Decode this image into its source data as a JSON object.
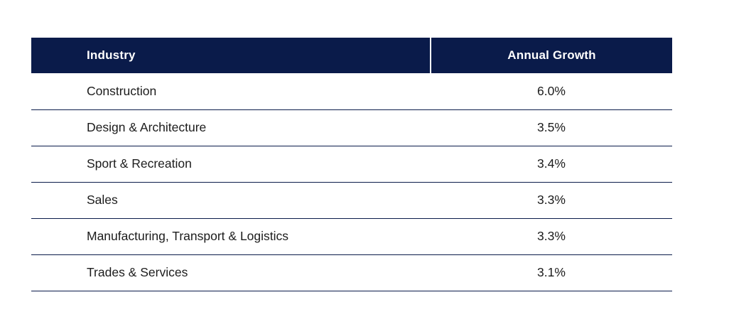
{
  "table": {
    "columns": [
      {
        "label": "Industry"
      },
      {
        "label": "Annual Growth"
      }
    ],
    "rows": [
      {
        "industry": "Construction",
        "growth": "6.0%"
      },
      {
        "industry": "Design & Architecture",
        "growth": "3.5%"
      },
      {
        "industry": "Sport & Recreation",
        "growth": "3.4%"
      },
      {
        "industry": "Sales",
        "growth": "3.3%"
      },
      {
        "industry": "Manufacturing, Transport & Logistics",
        "growth": "3.3%"
      },
      {
        "industry": "Trades & Services",
        "growth": "3.1%"
      }
    ]
  },
  "chart_data": {
    "type": "table",
    "title": "",
    "columns": [
      "Industry",
      "Annual Growth"
    ],
    "rows": [
      [
        "Construction",
        "6.0%"
      ],
      [
        "Design & Architecture",
        "3.5%"
      ],
      [
        "Sport & Recreation",
        "3.4%"
      ],
      [
        "Sales",
        "3.3%"
      ],
      [
        "Manufacturing, Transport & Logistics",
        "3.3%"
      ],
      [
        "Trades & Services",
        "3.1%"
      ]
    ],
    "growth_values_percent": [
      6.0,
      3.5,
      3.4,
      3.3,
      3.3,
      3.1
    ]
  },
  "colors": {
    "header_bg": "#0a1b4a",
    "header_text": "#ffffff",
    "header_divider": "#ffffff",
    "row_border": "#0a1b4a",
    "body_text": "#1c1c1c",
    "page_bg": "#ffffff"
  }
}
